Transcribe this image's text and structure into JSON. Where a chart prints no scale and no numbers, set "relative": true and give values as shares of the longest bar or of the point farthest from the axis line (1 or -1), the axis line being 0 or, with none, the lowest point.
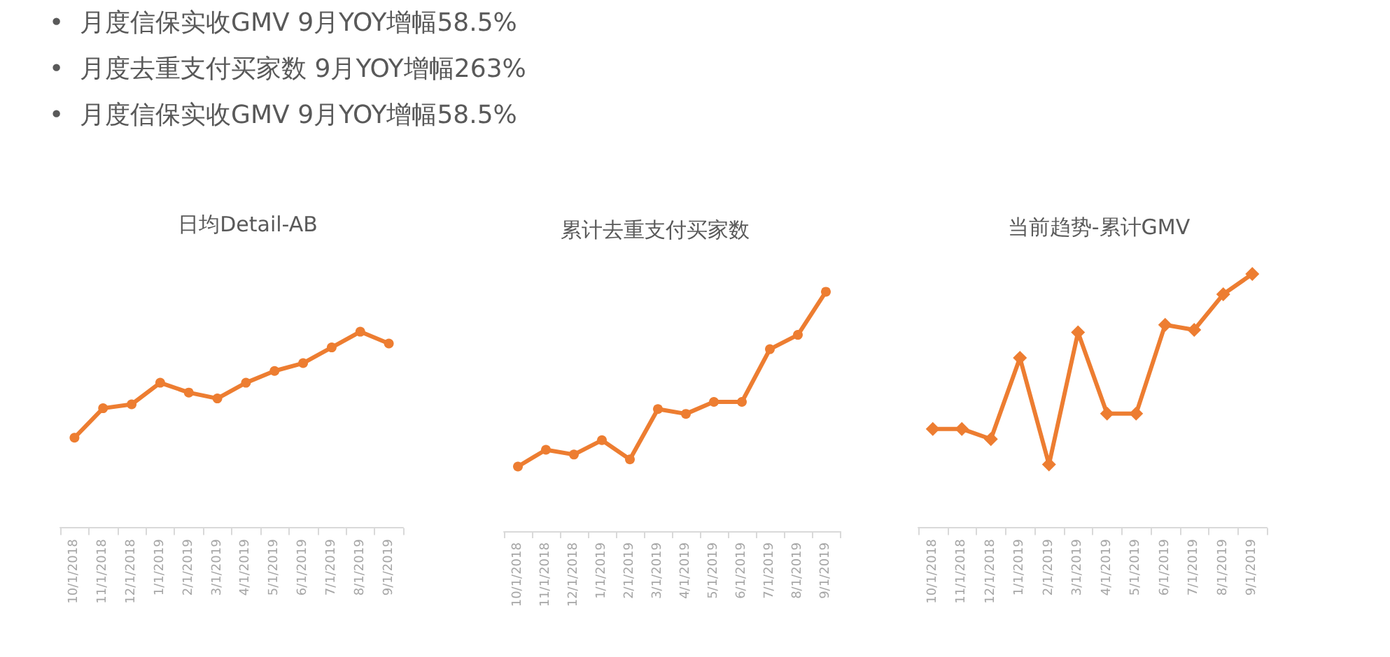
{
  "chart_data": [
    {
      "type": "other",
      "annotations": [
        "•  月度信保实收GMV 9月YOY增幅58.5%",
        "•  月度去重支付买家数 9月YOY增幅263%",
        "•  月度信保实收GMV 9月YOY增幅58.5%"
      ]
    },
    {
      "type": "line",
      "title": "日均Detail-AB",
      "categories": [
        "10/1/2018",
        "11/1/2018",
        "12/1/2018",
        "1/1/2019",
        "2/1/2019",
        "3/1/2019",
        "4/1/2019",
        "5/1/2019",
        "6/1/2019",
        "7/1/2019",
        "8/1/2019",
        "9/1/2019"
      ],
      "values": [
        0.46,
        0.61,
        0.63,
        0.74,
        0.69,
        0.66,
        0.74,
        0.8,
        0.84,
        0.92,
        1,
        0.94
      ],
      "color": "#ed7d31",
      "relative": true,
      "marker": "circle"
    },
    {
      "type": "line",
      "title": "累计去重支付买家数",
      "categories": [
        "10/1/2018",
        "11/1/2018",
        "12/1/2018",
        "1/1/2019",
        "2/1/2019",
        "3/1/2019",
        "4/1/2019",
        "5/1/2019",
        "6/1/2019",
        "7/1/2019",
        "8/1/2019",
        "9/1/2019"
      ],
      "values": [
        0.27,
        0.34,
        0.32,
        0.38,
        0.3,
        0.51,
        0.49,
        0.54,
        0.54,
        0.76,
        0.82,
        1
      ],
      "color": "#ed7d31",
      "relative": true,
      "marker": "circle"
    },
    {
      "type": "line",
      "title": "当前趋势-累计GMV",
      "categories": [
        "10/1/2018",
        "11/1/2018",
        "12/1/2018",
        "1/1/2019",
        "2/1/2019",
        "3/1/2019",
        "4/1/2019",
        "5/1/2019",
        "6/1/2019",
        "7/1/2019",
        "8/1/2019",
        "9/1/2019"
      ],
      "values": [
        0.39,
        0.39,
        0.35,
        0.67,
        0.25,
        0.77,
        0.45,
        0.45,
        0.8,
        0.78,
        0.92,
        1
      ],
      "color": "#ed7d31",
      "relative": true,
      "marker": "diamond"
    }
  ]
}
